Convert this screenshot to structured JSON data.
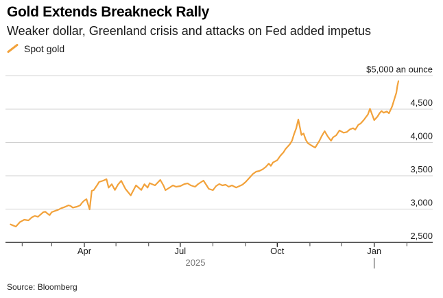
{
  "header": {
    "title": "Gold Extends Breakneck Rally",
    "subtitle": "Weaker dollar, Greenland crisis and attacks on Fed added impetus"
  },
  "legend": {
    "label": "Spot gold",
    "swatch_color": "#F2A23B"
  },
  "source": "Source: Bloomberg",
  "colors": {
    "line": "#F2A23B",
    "gridline": "#d0d0d0",
    "axis": "#000000",
    "minor_tick": "#3a3a3a",
    "major_tick": "#000000",
    "axis_text": "#1a1a1a",
    "year_text": "#757575",
    "background": "#ffffff"
  },
  "chart_data": {
    "type": "line",
    "title": "Gold Extends Breakneck Rally",
    "subtitle": "Weaker dollar, Greenland crisis and attacks on Fed added impetus",
    "unit": "$ an ounce",
    "grid": true,
    "legend_position": "top-left",
    "y_axis": {
      "side": "right",
      "range": [
        2500,
        5000
      ],
      "ticks": [
        {
          "label": "2,500",
          "value": 2500
        },
        {
          "label": "3,000",
          "value": 3000
        },
        {
          "label": "3,500",
          "value": 3500
        },
        {
          "label": "4,000",
          "value": 4000
        },
        {
          "label": "4,500",
          "value": 4500
        },
        {
          "label": "$5,000 an ounce",
          "value": 5000
        }
      ]
    },
    "x_axis": {
      "range": [
        "2025-01-21",
        "2026-02-25"
      ],
      "major_ticks": [
        {
          "label": "Apr",
          "date": "2025-04-01"
        },
        {
          "label": "Jul",
          "date": "2025-07-01"
        },
        {
          "label": "Oct",
          "date": "2025-10-01"
        },
        {
          "label": "Jan",
          "date": "2026-01-01"
        }
      ],
      "minor_tick_dates": [
        "2025-02-01",
        "2025-03-01",
        "2025-04-01",
        "2025-05-01",
        "2025-06-01",
        "2025-07-01",
        "2025-08-01",
        "2025-09-01",
        "2025-10-01",
        "2025-11-01",
        "2025-12-01",
        "2026-01-01",
        "2026-02-01"
      ],
      "year_label": "2025",
      "year_start_tick_date": "2026-01-01"
    },
    "series": [
      {
        "name": "Spot gold",
        "color": "#F2A23B",
        "points": [
          [
            "2025-01-21",
            2770
          ],
          [
            "2025-01-26",
            2737
          ],
          [
            "2025-01-30",
            2806
          ],
          [
            "2025-02-03",
            2840
          ],
          [
            "2025-02-07",
            2830
          ],
          [
            "2025-02-10",
            2874
          ],
          [
            "2025-02-13",
            2899
          ],
          [
            "2025-02-16",
            2885
          ],
          [
            "2025-02-19",
            2926
          ],
          [
            "2025-02-21",
            2954
          ],
          [
            "2025-02-23",
            2961
          ],
          [
            "2025-02-25",
            2933
          ],
          [
            "2025-02-27",
            2909
          ],
          [
            "2025-03-01",
            2954
          ],
          [
            "2025-03-05",
            2977
          ],
          [
            "2025-03-07",
            2988
          ],
          [
            "2025-03-10",
            3012
          ],
          [
            "2025-03-13",
            3029
          ],
          [
            "2025-03-17",
            3057
          ],
          [
            "2025-03-19",
            3046
          ],
          [
            "2025-03-21",
            3022
          ],
          [
            "2025-03-25",
            3036
          ],
          [
            "2025-03-28",
            3057
          ],
          [
            "2025-03-30",
            3098
          ],
          [
            "2025-04-01",
            3129
          ],
          [
            "2025-04-03",
            3149
          ],
          [
            "2025-04-06",
            2995
          ],
          [
            "2025-04-08",
            3273
          ],
          [
            "2025-04-10",
            3287
          ],
          [
            "2025-04-13",
            3356
          ],
          [
            "2025-04-15",
            3407
          ],
          [
            "2025-04-19",
            3428
          ],
          [
            "2025-04-22",
            3449
          ],
          [
            "2025-04-24",
            3322
          ],
          [
            "2025-04-27",
            3373
          ],
          [
            "2025-04-30",
            3287
          ],
          [
            "2025-05-03",
            3370
          ],
          [
            "2025-05-06",
            3425
          ],
          [
            "2025-05-10",
            3304
          ],
          [
            "2025-05-15",
            3205
          ],
          [
            "2025-05-20",
            3356
          ],
          [
            "2025-05-25",
            3287
          ],
          [
            "2025-05-28",
            3373
          ],
          [
            "2025-05-31",
            3322
          ],
          [
            "2025-06-02",
            3390
          ],
          [
            "2025-06-07",
            3356
          ],
          [
            "2025-06-12",
            3438
          ],
          [
            "2025-06-15",
            3356
          ],
          [
            "2025-06-17",
            3283
          ],
          [
            "2025-06-21",
            3324
          ],
          [
            "2025-06-24",
            3356
          ],
          [
            "2025-06-27",
            3335
          ],
          [
            "2025-07-01",
            3345
          ],
          [
            "2025-07-05",
            3376
          ],
          [
            "2025-07-08",
            3386
          ],
          [
            "2025-07-11",
            3356
          ],
          [
            "2025-07-15",
            3335
          ],
          [
            "2025-07-18",
            3376
          ],
          [
            "2025-07-21",
            3407
          ],
          [
            "2025-07-23",
            3428
          ],
          [
            "2025-07-26",
            3356
          ],
          [
            "2025-07-28",
            3304
          ],
          [
            "2025-08-01",
            3283
          ],
          [
            "2025-08-04",
            3345
          ],
          [
            "2025-08-07",
            3376
          ],
          [
            "2025-08-10",
            3356
          ],
          [
            "2025-08-13",
            3366
          ],
          [
            "2025-08-16",
            3335
          ],
          [
            "2025-08-19",
            3356
          ],
          [
            "2025-08-23",
            3324
          ],
          [
            "2025-08-25",
            3338
          ],
          [
            "2025-08-29",
            3366
          ],
          [
            "2025-09-01",
            3407
          ],
          [
            "2025-09-04",
            3459
          ],
          [
            "2025-09-08",
            3528
          ],
          [
            "2025-09-11",
            3562
          ],
          [
            "2025-09-14",
            3572
          ],
          [
            "2025-09-17",
            3596
          ],
          [
            "2025-09-20",
            3631
          ],
          [
            "2025-09-23",
            3682
          ],
          [
            "2025-09-25",
            3648
          ],
          [
            "2025-09-27",
            3700
          ],
          [
            "2025-10-01",
            3734
          ],
          [
            "2025-10-04",
            3802
          ],
          [
            "2025-10-07",
            3854
          ],
          [
            "2025-10-09",
            3905
          ],
          [
            "2025-10-13",
            3974
          ],
          [
            "2025-10-15",
            4026
          ],
          [
            "2025-10-17",
            4129
          ],
          [
            "2025-10-19",
            4211
          ],
          [
            "2025-10-21",
            4345
          ],
          [
            "2025-10-24",
            4112
          ],
          [
            "2025-10-26",
            4135
          ],
          [
            "2025-10-28",
            4043
          ],
          [
            "2025-10-30",
            3991
          ],
          [
            "2025-11-02",
            3960
          ],
          [
            "2025-11-04",
            3940
          ],
          [
            "2025-11-06",
            3923
          ],
          [
            "2025-11-10",
            4026
          ],
          [
            "2025-11-12",
            4090
          ],
          [
            "2025-11-15",
            4170
          ],
          [
            "2025-11-18",
            4090
          ],
          [
            "2025-11-21",
            4026
          ],
          [
            "2025-11-23",
            4077
          ],
          [
            "2025-11-26",
            4108
          ],
          [
            "2025-11-29",
            4180
          ],
          [
            "2025-12-03",
            4146
          ],
          [
            "2025-12-06",
            4157
          ],
          [
            "2025-12-09",
            4197
          ],
          [
            "2025-12-12",
            4214
          ],
          [
            "2025-12-14",
            4192
          ],
          [
            "2025-12-17",
            4266
          ],
          [
            "2025-12-19",
            4283
          ],
          [
            "2025-12-22",
            4335
          ],
          [
            "2025-12-26",
            4421
          ],
          [
            "2025-12-28",
            4507
          ],
          [
            "2025-12-30",
            4421
          ],
          [
            "2026-01-01",
            4335
          ],
          [
            "2026-01-04",
            4387
          ],
          [
            "2026-01-06",
            4438
          ],
          [
            "2026-01-08",
            4473
          ],
          [
            "2026-01-10",
            4446
          ],
          [
            "2026-01-13",
            4466
          ],
          [
            "2026-01-15",
            4438
          ],
          [
            "2026-01-18",
            4541
          ],
          [
            "2026-01-20",
            4644
          ],
          [
            "2026-01-22",
            4747
          ],
          [
            "2026-01-23",
            4850
          ],
          [
            "2026-01-24",
            4921
          ]
        ]
      }
    ]
  }
}
